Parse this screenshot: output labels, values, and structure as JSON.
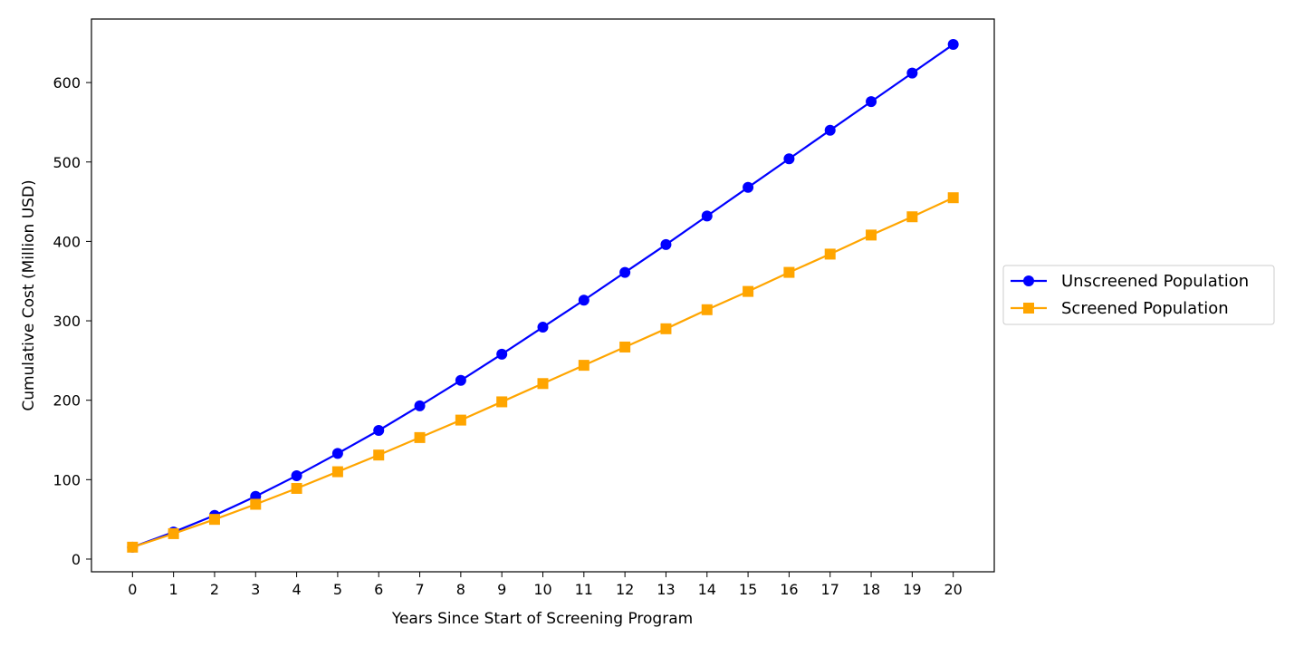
{
  "chart_data": {
    "type": "line",
    "title": "",
    "xlabel": "Years Since Start of Screening Program",
    "ylabel": "Cumulative Cost (Million USD)",
    "x": [
      0,
      1,
      2,
      3,
      4,
      5,
      6,
      7,
      8,
      9,
      10,
      11,
      12,
      13,
      14,
      15,
      16,
      17,
      18,
      19,
      20
    ],
    "x_ticks": [
      "0",
      "1",
      "2",
      "3",
      "4",
      "5",
      "6",
      "7",
      "8",
      "9",
      "10",
      "11",
      "12",
      "13",
      "14",
      "15",
      "16",
      "17",
      "18",
      "19",
      "20"
    ],
    "xlim": [
      -1,
      21
    ],
    "ylim": [
      -16,
      680
    ],
    "y_ticks": [
      "0",
      "100",
      "200",
      "300",
      "400",
      "500",
      "600"
    ],
    "grid": false,
    "legend_position": "outside-right",
    "series": [
      {
        "name": "Unscreened Population",
        "color": "#0000ff",
        "marker": "circle",
        "values": [
          15,
          34,
          55,
          79,
          105,
          133,
          162,
          193,
          225,
          258,
          292,
          326,
          361,
          396,
          432,
          468,
          504,
          540,
          576,
          612,
          648
        ]
      },
      {
        "name": "Screened Population",
        "color": "#ffa500",
        "marker": "square",
        "values": [
          15,
          32,
          50,
          69,
          89,
          110,
          131,
          153,
          175,
          198,
          221,
          244,
          267,
          290,
          314,
          337,
          361,
          384,
          408,
          431,
          455
        ]
      }
    ]
  }
}
